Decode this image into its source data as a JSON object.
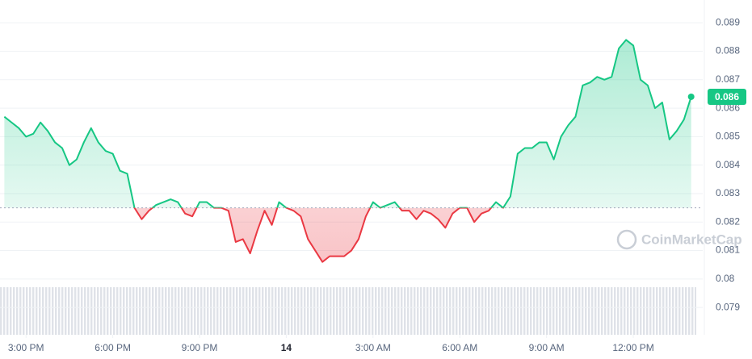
{
  "chart_data": {
    "type": "line",
    "x": [
      14.25,
      14.5,
      14.75,
      15,
      15.25,
      15.5,
      15.75,
      16,
      16.25,
      16.5,
      16.75,
      17,
      17.25,
      17.5,
      17.75,
      18,
      18.25,
      18.5,
      18.75,
      19,
      19.25,
      19.5,
      19.75,
      20,
      20.25,
      20.5,
      20.75,
      21,
      21.25,
      21.5,
      21.75,
      22,
      22.25,
      22.5,
      22.75,
      23,
      23.25,
      23.5,
      23.75,
      24,
      24.25,
      24.5,
      24.75,
      25,
      25.25,
      25.5,
      25.75,
      26,
      26.25,
      26.5,
      26.75,
      27,
      27.25,
      27.5,
      27.75,
      28,
      28.25,
      28.5,
      28.75,
      29,
      29.25,
      29.5,
      29.75,
      30,
      30.25,
      30.5,
      30.75,
      31,
      31.25,
      31.5,
      31.75,
      32,
      32.25,
      32.5,
      32.75,
      33,
      33.25,
      33.5,
      33.75,
      34,
      34.25,
      34.5,
      34.75,
      35,
      35.25,
      35.5,
      35.75,
      36,
      36.25,
      36.5,
      36.75,
      37,
      37.25,
      37.5,
      37.75,
      38
    ],
    "series": [
      {
        "values": [
          0.0857,
          0.0855,
          0.0853,
          0.085,
          0.0851,
          0.0855,
          0.0852,
          0.0848,
          0.0846,
          0.084,
          0.0842,
          0.0848,
          0.0853,
          0.0848,
          0.0845,
          0.0844,
          0.0838,
          0.0837,
          0.0825,
          0.0821,
          0.0824,
          0.0826,
          0.0827,
          0.0828,
          0.0827,
          0.0823,
          0.0822,
          0.0827,
          0.0827,
          0.0825,
          0.0825,
          0.0824,
          0.0813,
          0.0814,
          0.0809,
          0.0817,
          0.0824,
          0.0819,
          0.0827,
          0.0825,
          0.0824,
          0.0822,
          0.0814,
          0.081,
          0.0806,
          0.0808,
          0.0808,
          0.0808,
          0.081,
          0.0814,
          0.0822,
          0.0827,
          0.0825,
          0.0826,
          0.0827,
          0.0824,
          0.0824,
          0.0821,
          0.0824,
          0.0823,
          0.0821,
          0.0818,
          0.0823,
          0.0825,
          0.0825,
          0.082,
          0.0823,
          0.0824,
          0.0827,
          0.0825,
          0.0829,
          0.0844,
          0.0846,
          0.0846,
          0.0848,
          0.0848,
          0.0842,
          0.085,
          0.0854,
          0.0857,
          0.0868,
          0.0869,
          0.0871,
          0.087,
          0.0871,
          0.0881,
          0.0884,
          0.0882,
          0.087,
          0.0868,
          0.086,
          0.0862,
          0.0849,
          0.0852,
          0.0856,
          0.0864
        ]
      }
    ],
    "up_color": "#16c784",
    "down_color": "#ea3943",
    "reference": 0.0825,
    "current_price": {
      "value": 0.0864,
      "label": "0.086"
    },
    "xlim": [
      14.1,
      38.4
    ],
    "xticks": [
      {
        "value": 15,
        "label": "3:00 PM"
      },
      {
        "value": 18,
        "label": "6:00 PM"
      },
      {
        "value": 21,
        "label": "9:00 PM"
      },
      {
        "value": 24,
        "label": "14"
      },
      {
        "value": 27,
        "label": "3:00 AM"
      },
      {
        "value": 30,
        "label": "6:00 AM"
      },
      {
        "value": 33,
        "label": "9:00 AM"
      },
      {
        "value": 36,
        "label": "12:00 PM"
      }
    ],
    "ylim": [
      0.07804,
      0.0898
    ],
    "yticks": [
      0.079,
      0.08,
      0.081,
      0.082,
      0.083,
      0.084,
      0.085,
      0.086,
      0.087,
      0.088,
      0.089
    ],
    "grid": true,
    "watermark": "CoinMarketCap"
  }
}
